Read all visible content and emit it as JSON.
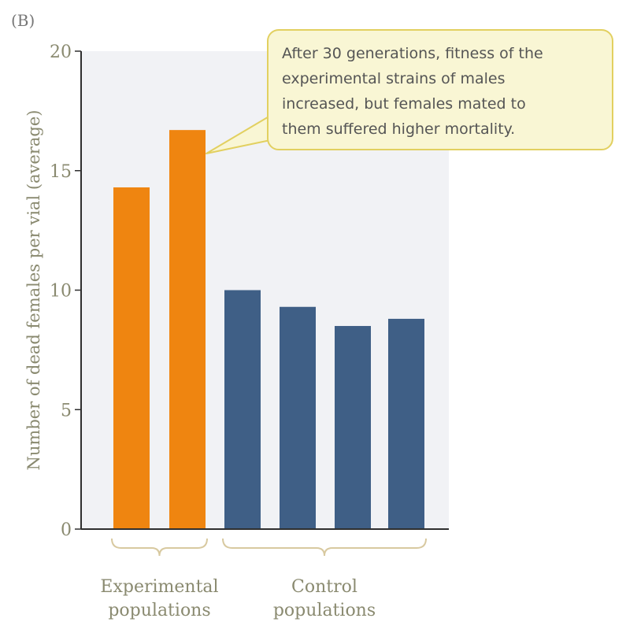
{
  "panel_label": "(B)",
  "colors": {
    "plot_background": "#f1f2f5",
    "experimental": "#ef8510",
    "control": "#3f5f86",
    "axis": "#2f2f2f",
    "bracket": "#d8c9a0",
    "callout_fill": "#f9f6d4",
    "callout_stroke": "#e2d060"
  },
  "callout": {
    "lines": [
      "After 30 generations, fitness of the",
      "experimental strains of males",
      "increased, but females mated to",
      "them suffered higher mortality."
    ]
  },
  "chart_data": {
    "type": "bar",
    "ylabel": "Number of dead females per vial (average)",
    "xlabel": "",
    "ylim": [
      0,
      20
    ],
    "yticks": [
      0,
      5,
      10,
      15,
      20
    ],
    "grid": false,
    "series": [
      {
        "values": [
          14.3,
          16.7,
          10.0,
          9.3,
          8.5,
          8.8
        ]
      }
    ],
    "bar_groups": [
      "experimental",
      "experimental",
      "control",
      "control",
      "control",
      "control"
    ],
    "group_labels": [
      {
        "group": "experimental",
        "lines": [
          "Experimental",
          "populations"
        ],
        "bars": [
          0,
          1
        ]
      },
      {
        "group": "control",
        "lines": [
          "Control",
          "populations"
        ],
        "bars": [
          2,
          3,
          4,
          5
        ]
      }
    ]
  }
}
